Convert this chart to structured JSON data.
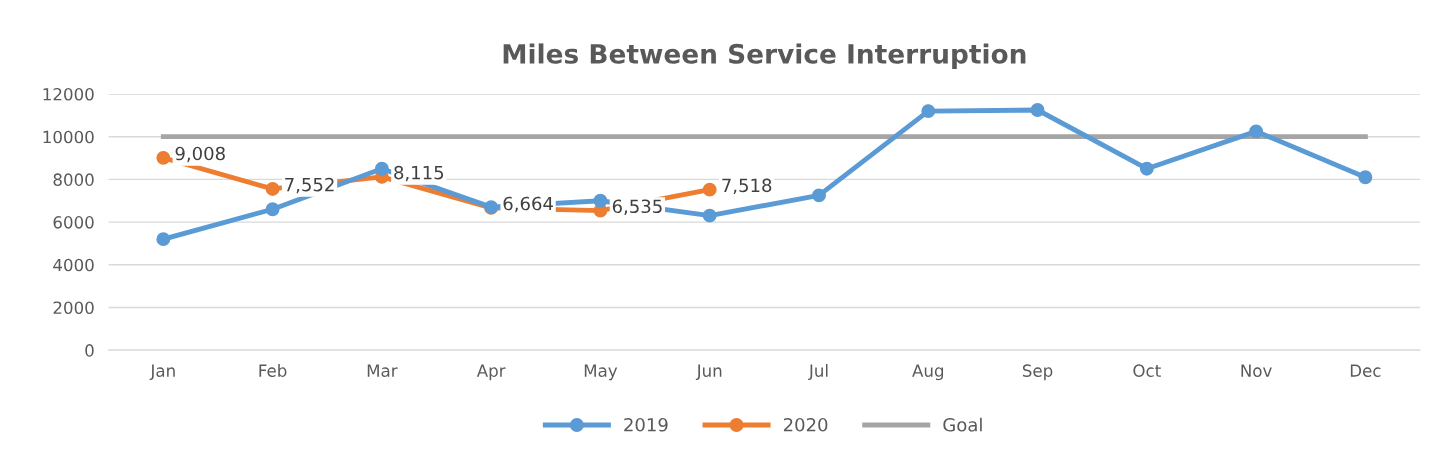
{
  "chart_data": {
    "type": "line",
    "title": "Miles Between Service Interruption",
    "categories": [
      "Jan",
      "Feb",
      "Mar",
      "Apr",
      "May",
      "Jun",
      "Jul",
      "Aug",
      "Sep",
      "Oct",
      "Nov",
      "Dec"
    ],
    "series": [
      {
        "name": "2019",
        "color": "#5b9bd5",
        "marker": "circle",
        "values": [
          5200,
          6600,
          8500,
          6700,
          7000,
          6300,
          7250,
          11200,
          11250,
          8500,
          10250,
          8100
        ]
      },
      {
        "name": "2020",
        "color": "#ed7d31",
        "marker": "circle",
        "values": [
          9008,
          7552,
          8115,
          6664,
          6535,
          7518,
          null,
          null,
          null,
          null,
          null,
          null
        ],
        "value_labels": [
          "9,008",
          "7,552",
          "8,115",
          "6,664",
          "6,535",
          "7,518",
          null,
          null,
          null,
          null,
          null,
          null
        ]
      },
      {
        "name": "Goal",
        "color": "#a5a5a5",
        "marker": "none",
        "values": [
          10000,
          10000,
          10000,
          10000,
          10000,
          10000,
          10000,
          10000,
          10000,
          10000,
          10000,
          10000
        ]
      }
    ],
    "ylim": [
      0,
      12000
    ],
    "yticks": [
      0,
      2000,
      4000,
      6000,
      8000,
      10000,
      12000
    ],
    "grid": "y",
    "legend": "bottom"
  }
}
